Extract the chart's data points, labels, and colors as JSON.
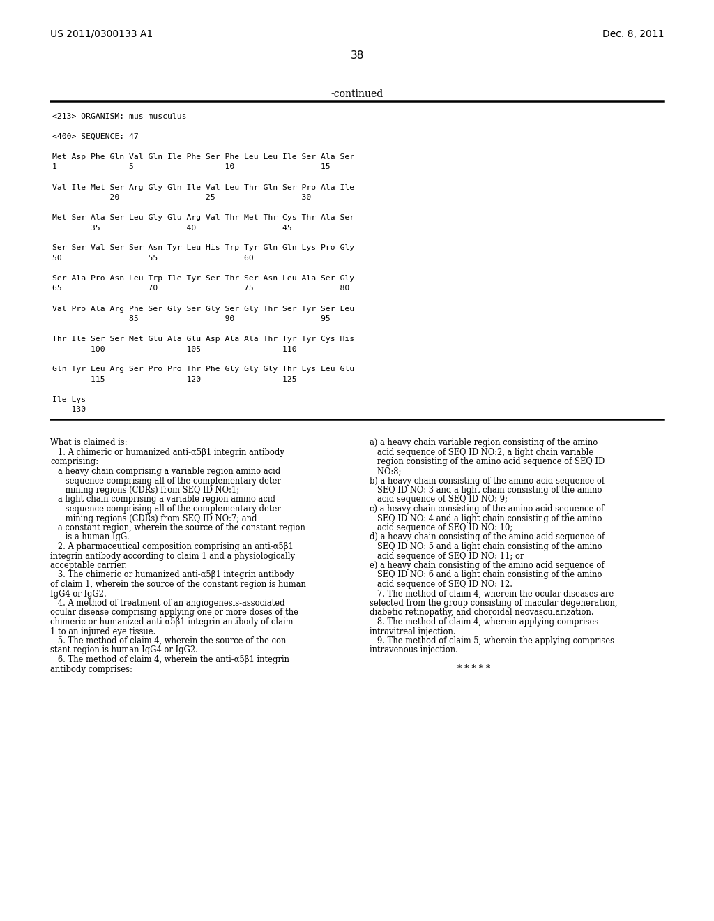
{
  "header_left": "US 2011/0300133 A1",
  "header_right": "Dec. 8, 2011",
  "page_number": "38",
  "continued_label": "-continued",
  "bg_color": "#ffffff",
  "text_color": "#000000",
  "sequence_block": [
    "<213> ORGANISM: mus musculus",
    "",
    "<400> SEQUENCE: 47",
    "",
    "Met Asp Phe Gln Val Gln Ile Phe Ser Phe Leu Leu Ile Ser Ala Ser",
    "1               5                   10                  15",
    "",
    "Val Ile Met Ser Arg Gly Gln Ile Val Leu Thr Gln Ser Pro Ala Ile",
    "            20                  25                  30",
    "",
    "Met Ser Ala Ser Leu Gly Glu Arg Val Thr Met Thr Cys Thr Ala Ser",
    "        35                  40                  45",
    "",
    "Ser Ser Val Ser Ser Asn Tyr Leu His Trp Tyr Gln Gln Lys Pro Gly",
    "50                  55                  60",
    "",
    "Ser Ala Pro Asn Leu Trp Ile Tyr Ser Thr Ser Asn Leu Ala Ser Gly",
    "65                  70                  75                  80",
    "",
    "Val Pro Ala Arg Phe Ser Gly Ser Gly Ser Gly Thr Ser Tyr Ser Leu",
    "                85                  90                  95",
    "",
    "Thr Ile Ser Ser Met Glu Ala Glu Asp Ala Ala Thr Tyr Tyr Cys His",
    "        100                 105                 110",
    "",
    "Gln Tyr Leu Arg Ser Pro Pro Thr Phe Gly Gly Gly Thr Lys Leu Glu",
    "        115                 120                 125",
    "",
    "Ile Lys",
    "    130"
  ],
  "claims_left": [
    "What is claimed is:",
    "   1. A chimeric or humanized anti-α5β1 integrin antibody",
    "comprising:",
    "   a heavy chain comprising a variable region amino acid",
    "      sequence comprising all of the complementary deter-",
    "      mining regions (CDRs) from SEQ ID NO:1;",
    "   a light chain comprising a variable region amino acid",
    "      sequence comprising all of the complementary deter-",
    "      mining regions (CDRs) from SEQ ID NO:7; and",
    "   a constant region, wherein the source of the constant region",
    "      is a human IgG.",
    "   2. A pharmaceutical composition comprising an anti-α5β1",
    "integrin antibody according to claim 1 and a physiologically",
    "acceptable carrier.",
    "   3. The chimeric or humanized anti-α5β1 integrin antibody",
    "of claim 1, wherein the source of the constant region is human",
    "IgG4 or IgG2.",
    "   4. A method of treatment of an angiogenesis-associated",
    "ocular disease comprising applying one or more doses of the",
    "chimeric or humanized anti-α5β1 integrin antibody of claim",
    "1 to an injured eye tissue.",
    "   5. The method of claim 4, wherein the source of the con-",
    "stant region is human IgG4 or IgG2.",
    "   6. The method of claim 4, wherein the anti-α5β1 integrin",
    "antibody comprises:"
  ],
  "claims_right": [
    "a) a heavy chain variable region consisting of the amino",
    "   acid sequence of SEQ ID NO:2, a light chain variable",
    "   region consisting of the amino acid sequence of SEQ ID",
    "   NO:8;",
    "b) a heavy chain consisting of the amino acid sequence of",
    "   SEQ ID NO: 3 and a light chain consisting of the amino",
    "   acid sequence of SEQ ID NO: 9;",
    "c) a heavy chain consisting of the amino acid sequence of",
    "   SEQ ID NO: 4 and a light chain consisting of the amino",
    "   acid sequence of SEQ ID NO: 10;",
    "d) a heavy chain consisting of the amino acid sequence of",
    "   SEQ ID NO: 5 and a light chain consisting of the amino",
    "   acid sequence of SEQ ID NO: 11; or",
    "e) a heavy chain consisting of the amino acid sequence of",
    "   SEQ ID NO: 6 and a light chain consisting of the amino",
    "   acid sequence of SEQ ID NO: 12.",
    "   7. The method of claim 4, wherein the ocular diseases are",
    "selected from the group consisting of macular degeneration,",
    "diabetic retinopathy, and choroidal neovascularization.",
    "   8. The method of claim 4, wherein applying comprises",
    "intravitreal injection.",
    "   9. The method of claim 5, wherein the applying comprises",
    "intravenous injection.",
    "",
    "* * * * *"
  ]
}
